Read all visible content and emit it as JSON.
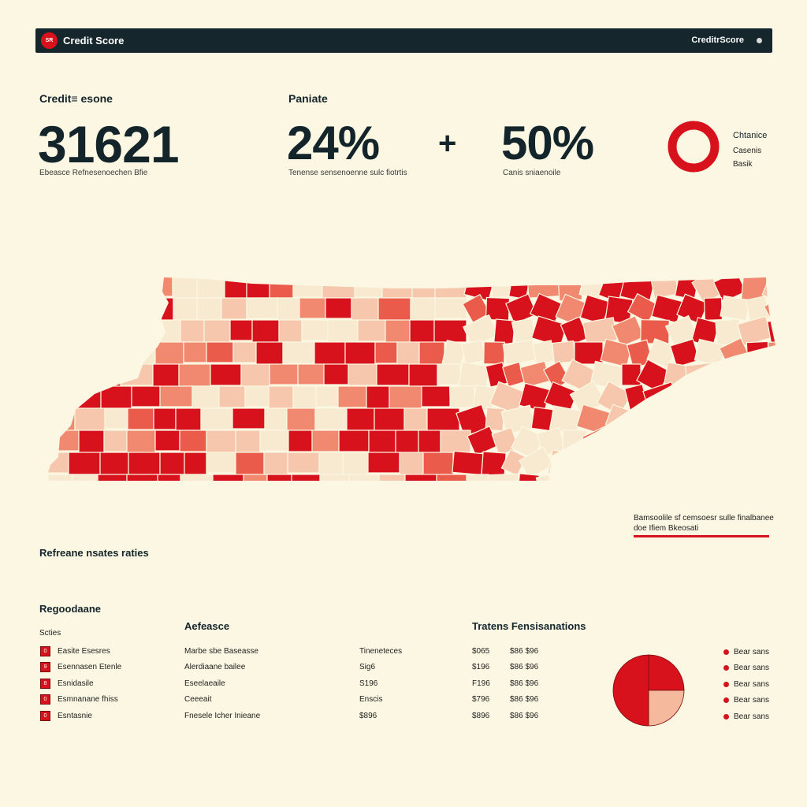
{
  "header": {
    "logo_text": "SR",
    "title": "Credit Score",
    "right_label": "CreditrScore"
  },
  "kpis": [
    {
      "label": "Credit≡ esone",
      "value": "31621",
      "sub": "Ebeasce Refnesenoechen Bfie"
    },
    {
      "label": "Paniate",
      "value": "24%",
      "sub": "Tenense sensenoenne sulc fiotrtis"
    },
    {
      "operator": "+"
    },
    {
      "value": "50%",
      "sub": "Canis sniaenoile"
    }
  ],
  "donut_legend": [
    "Chtanice",
    "Casenis",
    "Basik"
  ],
  "note": {
    "line1": "Bamsoolile sf cemsoesr sulle finalbanee",
    "line2": "doe Ifiem Bkeosati"
  },
  "map": {
    "palette": [
      "#f7ead0",
      "#f6c7ac",
      "#f08970",
      "#ea5b4b",
      "#d8121c"
    ],
    "legend_levels": [
      0,
      1,
      2,
      3,
      4
    ]
  },
  "sections": {
    "left": "Refreane nsates raties",
    "left2": "Regoodaane",
    "left2_sub": "Scties",
    "mid": "Aefeasce",
    "right": "Tratens Fensisanations"
  },
  "list_rows": [
    {
      "badge": "0",
      "name": "Easite Esesres",
      "desc": "Marbe sbe Baseasse",
      "val": "Tineneteces",
      "a": "$065",
      "b": "$86 $96"
    },
    {
      "badge": "9",
      "name": "Esennasen Etenle",
      "desc": "Alerdiaane bailee",
      "val": "Sig6",
      "a": "$196",
      "b": "$86 $96"
    },
    {
      "badge": "8",
      "name": "Esnidasile",
      "desc": "Eseelaeaile",
      "val": "S196",
      "a": "F196",
      "b": "$86 $96"
    },
    {
      "badge": "0",
      "name": "Esmnanane fhiss",
      "desc": "Ceeeait",
      "val": "Enscis",
      "a": "$796",
      "b": "$86 $96"
    },
    {
      "badge": "0",
      "name": "Esntasnie",
      "desc": "Fnesele Icher Inieane",
      "val": "$896",
      "a": "$896",
      "b": "$86 $96"
    }
  ],
  "pie_legend": [
    "Bear sans",
    "Bear sans",
    "Bear sans",
    "Bear sans",
    "Bear sans"
  ],
  "pie": [
    {
      "value": 25,
      "color": "#d8121c"
    },
    {
      "value": 25,
      "color": "#f5b99d"
    },
    {
      "value": 50,
      "color": "#d8121c"
    }
  ]
}
